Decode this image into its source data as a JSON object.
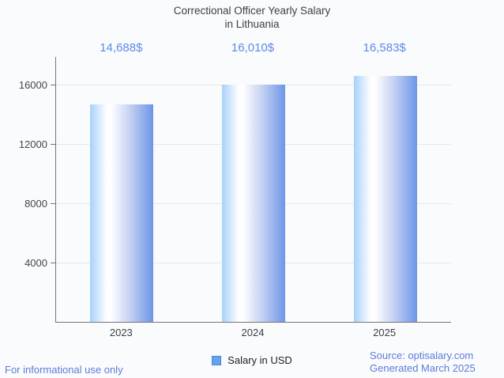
{
  "chart": {
    "title_line1": "Correctional Officer Yearly Salary",
    "title_line2": "in Lithuania"
  },
  "chart_data": {
    "type": "bar",
    "title": "Correctional Officer Yearly Salary in Lithuania",
    "categories": [
      "2023",
      "2024",
      "2025"
    ],
    "series": [
      {
        "name": "Salary in USD",
        "values": [
          14688,
          16010,
          16583
        ]
      }
    ],
    "value_labels": [
      "14,688$",
      "16,010$",
      "16,583$"
    ],
    "xlabel": "",
    "ylabel": "",
    "ylim": [
      0,
      17867
    ],
    "yticks": [
      4000,
      8000,
      12000,
      16000
    ],
    "grid": true,
    "legend_position": "bottom",
    "bar_gradient": [
      "#a7d1fa",
      "#ffffff",
      "#6c96e8"
    ],
    "value_label_color": "#5d8be6"
  },
  "legend": {
    "label": "Salary in USD"
  },
  "footer": {
    "left": "For informational use only",
    "source": "Source: optisalary.com",
    "generated": "Generated March 2025"
  },
  "colors": {
    "background": "#fafbfd",
    "axis": "#757575",
    "gridline": "#e7e8ea",
    "title_text": "#3b3f44",
    "footer_blue": "#5c7cd9",
    "legend_marker_fill": "#66a3ee",
    "legend_marker_border": "#4c86cf"
  }
}
